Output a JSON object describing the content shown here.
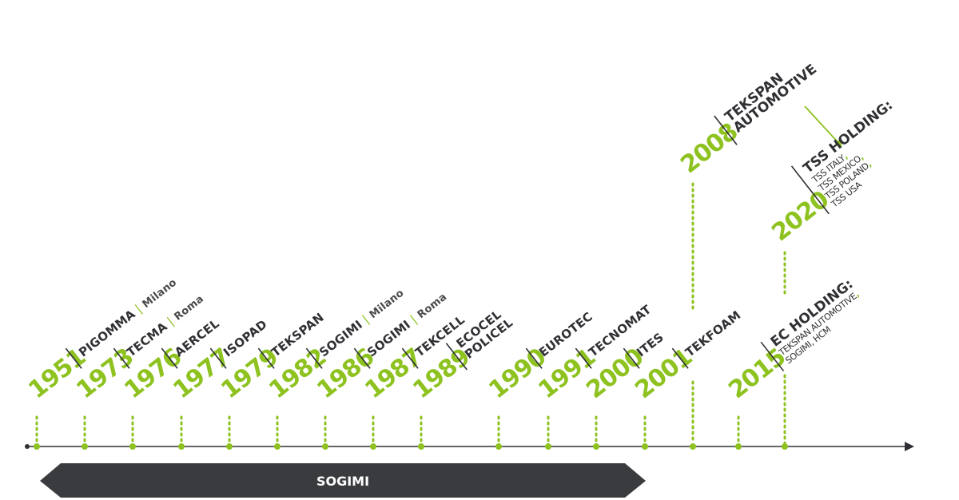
{
  "colors": {
    "accent": "#8dc21f",
    "dark": "#2f3033",
    "banner": "#3a3b3e"
  },
  "events": [
    {
      "year": "1951",
      "name": "PIGOMMA",
      "city": "Milano"
    },
    {
      "year": "1973",
      "name": "TECMA",
      "city": "Roma"
    },
    {
      "year": "1976",
      "name": "AERCEL",
      "city": ""
    },
    {
      "year": "1977",
      "name": "ISOPAD",
      "city": ""
    },
    {
      "year": "1979",
      "name": "TEKSPAN",
      "city": ""
    },
    {
      "year": "1982",
      "name": "SOGIMI",
      "city": "Milano"
    },
    {
      "year": "1986",
      "name": "SOGIMI",
      "city": "Roma"
    },
    {
      "year": "1987",
      "name": "TEKCELL",
      "city": ""
    },
    {
      "year": "1989",
      "name": "ECOCEL",
      "name2": "POLICEL"
    },
    {
      "year": "1990",
      "name": "EUROTEC"
    },
    {
      "year": "1991",
      "name": "TECNOMAT"
    },
    {
      "year": "2000",
      "name": "ITES"
    },
    {
      "year": "2001",
      "name": "TEKFOAM"
    },
    {
      "year": "2015",
      "name": "EC HOLDING:",
      "sub1": "TEKSPAN AUTOMOTIVE",
      "sub2": "SOGIMI, HCM"
    },
    {
      "year": "2008",
      "name": "TEKSPAN",
      "name2": "AUTOMOTIVE"
    },
    {
      "year": "2020",
      "name": "TSS HOLDING:",
      "sub1": "TSS ITALY",
      "sub2": "TSS MEXICO",
      "sub3": "TSS POLAND",
      "sub4": "TSS USA"
    }
  ],
  "banner": {
    "label": "SOGIMI"
  }
}
